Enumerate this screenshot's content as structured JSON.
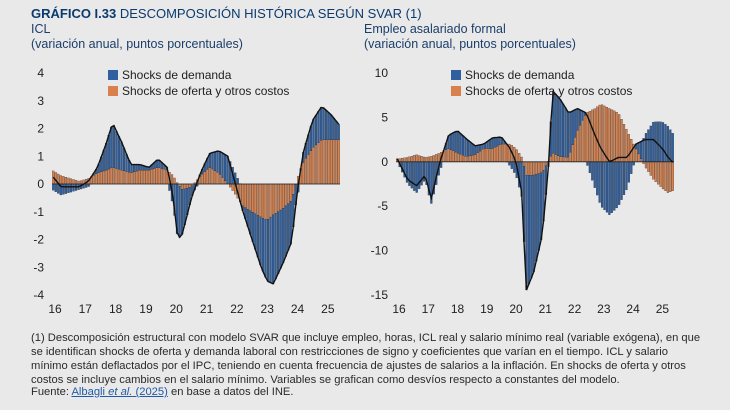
{
  "header": {
    "label": "GRÁFICO I.33",
    "title": "DESCOMPOSICIÓN HISTÓRICA SEGÚN SVAR (1)"
  },
  "colors": {
    "demand": "#2f5f9f",
    "supply": "#d8814d",
    "line": "#111111",
    "bg": "#e9e9e9"
  },
  "chart_data": [
    {
      "type": "bar",
      "stacked": true,
      "title": "ICL",
      "subtitle": "(variación anual, puntos porcentuales)",
      "legend": [
        "Shocks de demanda",
        "Shocks de oferta y otros costos"
      ],
      "legend_position": "top-right",
      "x_ticks": [
        "16",
        "17",
        "18",
        "19",
        "20",
        "21",
        "22",
        "23",
        "24",
        "25"
      ],
      "y_ticks": [
        "4",
        "3",
        "2",
        "1",
        "0",
        "-1",
        "-2",
        "-3",
        "-4"
      ],
      "ylim": [
        -4,
        4
      ],
      "x_start": 2016.0,
      "x_end": 2025.5,
      "anchors": {
        "t": [
          2016.0,
          2016.3,
          2016.6,
          2016.9,
          2017.2,
          2017.5,
          2017.8,
          2018.0,
          2018.3,
          2018.6,
          2018.9,
          2019.2,
          2019.5,
          2019.8,
          2020.0,
          2020.15,
          2020.3,
          2020.6,
          2020.9,
          2021.2,
          2021.5,
          2021.8,
          2022.0,
          2022.3,
          2022.6,
          2022.9,
          2023.1,
          2023.3,
          2023.6,
          2023.9,
          2024.1,
          2024.3,
          2024.6,
          2024.9,
          2025.2,
          2025.5
        ],
        "demand": [
          -0.2,
          -0.4,
          -0.3,
          -0.2,
          -0.1,
          0.2,
          1.0,
          1.6,
          1.0,
          0.3,
          0.2,
          0.1,
          0.3,
          0.1,
          -0.8,
          -2.0,
          -1.6,
          -0.4,
          0.1,
          0.5,
          0.8,
          1.0,
          0.5,
          -0.2,
          -1.0,
          -1.8,
          -2.2,
          -2.5,
          -2.0,
          -1.5,
          -0.4,
          0.4,
          1.0,
          1.2,
          0.9,
          0.5
        ],
        "supply": [
          0.5,
          0.3,
          0.2,
          0.1,
          0.2,
          0.4,
          0.5,
          0.6,
          0.5,
          0.4,
          0.5,
          0.5,
          0.6,
          0.5,
          0.3,
          0.0,
          -0.2,
          -0.1,
          0.3,
          0.6,
          0.4,
          0.0,
          -0.3,
          -0.8,
          -1.0,
          -1.2,
          -1.3,
          -1.1,
          -0.9,
          -0.6,
          0.2,
          0.8,
          1.3,
          1.6,
          1.6,
          1.6
        ]
      }
    },
    {
      "type": "bar",
      "stacked": true,
      "title": "Empleo asalariado formal",
      "subtitle": "(variación anual, puntos porcentuales)",
      "legend": [
        "Shocks de demanda",
        "Shocks de oferta y otros costos"
      ],
      "legend_position": "top-right",
      "x_ticks": [
        "16",
        "17",
        "18",
        "19",
        "20",
        "21",
        "22",
        "23",
        "24",
        "25"
      ],
      "y_ticks": [
        "10",
        "5",
        "0",
        "-5",
        "-10",
        "-15"
      ],
      "ylim": [
        -15,
        10
      ],
      "x_start": 2016.0,
      "x_end": 2025.5,
      "anchors": {
        "t": [
          2016.0,
          2016.4,
          2016.7,
          2017.0,
          2017.2,
          2017.5,
          2017.8,
          2018.1,
          2018.4,
          2018.7,
          2019.0,
          2019.3,
          2019.6,
          2019.9,
          2020.1,
          2020.3,
          2020.45,
          2020.7,
          2021.0,
          2021.2,
          2021.35,
          2021.6,
          2021.9,
          2022.2,
          2022.5,
          2022.8,
          2023.0,
          2023.3,
          2023.6,
          2023.9,
          2024.2,
          2024.5,
          2024.8,
          2025.1,
          2025.3,
          2025.5
        ],
        "demand": [
          0.3,
          -2.5,
          -3.5,
          -2.0,
          -4.8,
          -1.0,
          1.5,
          2.5,
          2.0,
          1.0,
          0.5,
          1.2,
          0.8,
          -0.5,
          -1.5,
          -4.0,
          -13.0,
          -11.0,
          -7.0,
          -1.0,
          7.0,
          6.5,
          5.0,
          2.5,
          0.0,
          -3.0,
          -5.0,
          -6.0,
          -5.0,
          -3.0,
          0.5,
          3.0,
          4.5,
          4.5,
          4.0,
          3.0
        ],
        "supply": [
          0.3,
          0.5,
          0.8,
          0.5,
          0.6,
          1.0,
          1.5,
          1.0,
          0.6,
          0.8,
          1.5,
          1.5,
          2.0,
          2.0,
          1.5,
          0.5,
          -1.5,
          -1.5,
          -1.2,
          0.0,
          1.0,
          0.6,
          0.5,
          3.5,
          5.5,
          6.0,
          6.5,
          6.0,
          5.5,
          3.5,
          1.5,
          -0.5,
          -2.0,
          -3.0,
          -3.5,
          -3.2
        ]
      }
    }
  ],
  "footnote": "(1) Descomposición estructural con modelo SVAR que incluye empleo, horas, ICL real y salario mínimo real (variable exógena), en que se identifican shocks de oferta y demanda laboral con restricciones de signo y coeficientes que varían en el tiempo. ICL y salario mínimo están deflactados por el IPC, teniendo en cuenta frecuencia de ajustes de salarios a la inflación. En shocks de oferta y otros costos se incluye cambios en el salario mínimo. Variables se grafican como desvíos respecto a constantes del modelo.",
  "source": {
    "prefix": "Fuente: ",
    "link_author": "Albagli ",
    "link_etal": "et al.",
    "link_year": " (2025)",
    "suffix": " en base a datos del INE."
  }
}
